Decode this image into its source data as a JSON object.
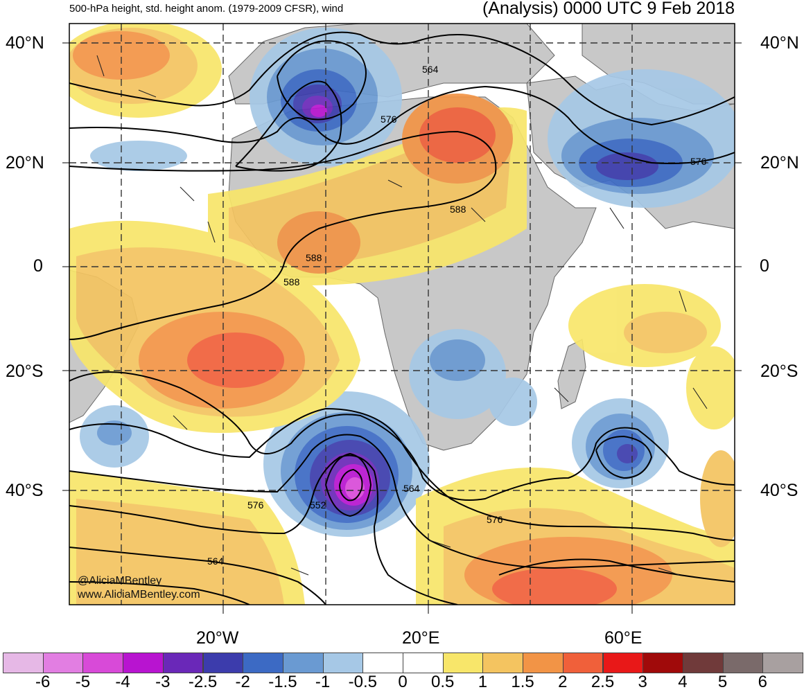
{
  "header": {
    "left_title": "500-hPa height, std. height anom. (1979-2009 CFSR), wind",
    "right_title": "(Analysis) 0000 UTC 9 Feb 2018"
  },
  "lat_labels": [
    "40°N",
    "20°N",
    "0",
    "20°S",
    "40°S"
  ],
  "lon_labels": [
    "20°W",
    "20°E",
    "60°E"
  ],
  "height_labels": [
    "564",
    "576",
    "588",
    "588",
    "588",
    "576",
    "564",
    "552",
    "576",
    "564",
    "576"
  ],
  "credits": {
    "twitter": "@AliciaMBentley",
    "website": "www.AliciaMBentley.com"
  },
  "colorbar": {
    "colors": [
      "#e6b8e6",
      "#e27ee2",
      "#d84ad8",
      "#b814d0",
      "#6a28b8",
      "#3c3cac",
      "#3c6ac4",
      "#6a9ad2",
      "#a6c8e6",
      "#ffffff",
      "#ffffff",
      "#f8e66a",
      "#f4c460",
      "#f29446",
      "#f0603a",
      "#e81818",
      "#a00a0a",
      "#703a3a",
      "#7a6a6a",
      "#a8a0a0"
    ],
    "labels": [
      "-6",
      "-5",
      "-4",
      "-3",
      "-2.5",
      "-2",
      "-1.5",
      "-1",
      "-0.5",
      "0",
      "0.5",
      "1",
      "1.5",
      "2",
      "2.5",
      "3",
      "4",
      "5",
      "6"
    ]
  },
  "palette": {
    "ocean": "#ffffff",
    "land": "#c8c8c8",
    "contour": "#000000",
    "grid": "#333333"
  }
}
